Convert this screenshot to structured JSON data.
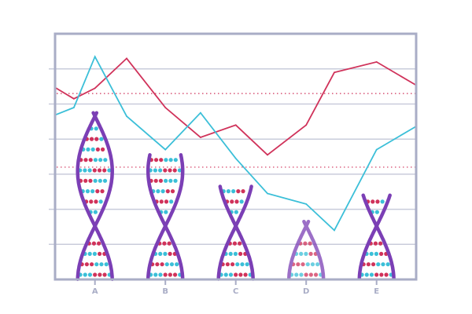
{
  "chart_data": {
    "type": "bar",
    "title": "",
    "xlabel": "",
    "ylabel": "",
    "categories": [
      "A",
      "B",
      "C",
      "D",
      "E"
    ],
    "ylim": [
      0,
      7
    ],
    "grid": true,
    "bar_style": "dna-helix pictograph",
    "values": [
      4.75,
      3.55,
      2.65,
      1.65,
      2.4
    ],
    "line_series": [
      {
        "x": [
          -0.55,
          -0.3,
          0,
          0.45,
          1,
          1.5,
          2,
          2.45,
          3,
          3.4,
          4,
          4.55
        ],
        "values": [
          5.45,
          5.15,
          5.45,
          6.3,
          4.9,
          4.05,
          4.4,
          3.55,
          4.4,
          5.9,
          6.2,
          5.55
        ],
        "color": "#d0325a"
      },
      {
        "x": [
          -0.55,
          -0.3,
          0,
          0.45,
          1,
          1.5,
          2,
          2.45,
          3,
          3.4,
          4,
          4.55
        ],
        "values": [
          4.7,
          4.9,
          6.35,
          4.65,
          3.7,
          4.75,
          3.45,
          2.45,
          2.15,
          1.4,
          3.7,
          4.35
        ],
        "color": "#3bbfd8"
      }
    ],
    "reference_lines": [
      5.3,
      3.2
    ],
    "reference_color": "#d0325a",
    "colors": {
      "helix": "#7b3fb5",
      "rung_a": "#d0325a",
      "rung_b": "#3bbfd8",
      "grid": "#c9ccdb",
      "frame": "#a9adc6"
    }
  }
}
